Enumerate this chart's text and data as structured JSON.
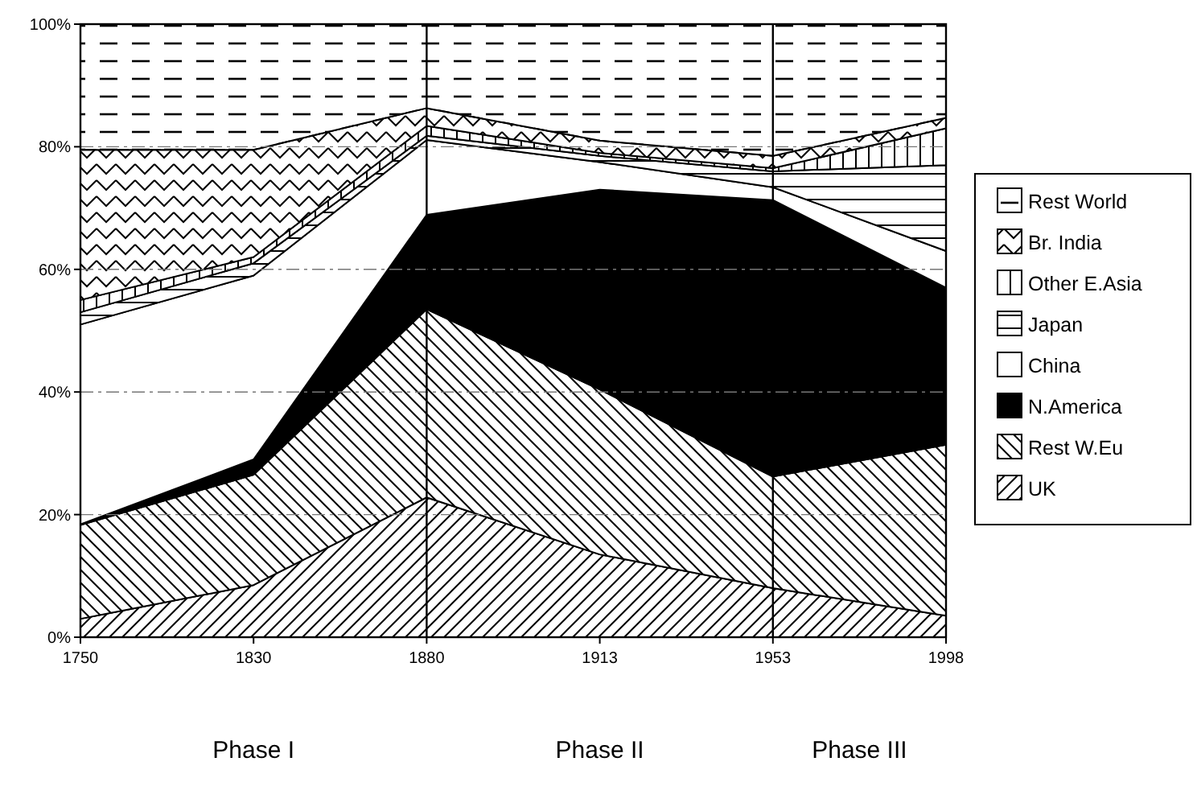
{
  "chart_data": {
    "type": "area",
    "stacked": true,
    "categories": [
      "1750",
      "1830",
      "1880",
      "1913",
      "1953",
      "1998"
    ],
    "series": [
      {
        "name": "UK",
        "color": "#000000",
        "values": [
          3,
          8.5,
          22.8,
          13.5,
          8,
          3.5
        ]
      },
      {
        "name": "Rest W.Eu",
        "color": "#000000",
        "values": [
          15.3,
          18,
          30.7,
          26.9,
          18.2,
          27.9
        ]
      },
      {
        "name": "N.America",
        "color": "#000000",
        "values": [
          0.1,
          2.5,
          15.4,
          32.6,
          45.1,
          25.6
        ]
      },
      {
        "name": "China",
        "color": "#ffffff",
        "values": [
          32.6,
          30,
          12.2,
          4.5,
          2.1,
          6
        ]
      },
      {
        "name": "Japan",
        "color": "#000000",
        "values": [
          2,
          2,
          0.7,
          1,
          2.6,
          14
        ]
      },
      {
        "name": "Other E.Asia",
        "color": "#000000",
        "values": [
          2,
          1,
          1.6,
          0.5,
          0.5,
          6
        ]
      },
      {
        "name": "Br. India",
        "color": "#000000",
        "values": [
          24.5,
          17.5,
          2.9,
          2,
          2,
          1.7
        ]
      },
      {
        "name": "Rest World",
        "color": "#000000",
        "values": [
          20.5,
          20.5,
          13.7,
          19,
          21.5,
          15.3
        ]
      }
    ],
    "ylim": [
      0,
      100
    ],
    "yticks": [
      {
        "value": 0,
        "label": "0%"
      },
      {
        "value": 20,
        "label": "20%"
      },
      {
        "value": 40,
        "label": "40%"
      },
      {
        "value": 60,
        "label": "60%"
      },
      {
        "value": 80,
        "label": "80%"
      },
      {
        "value": 100,
        "label": "100%"
      }
    ],
    "grid": "y",
    "legend": "right",
    "ref_lines": [
      {
        "axis": "x",
        "value": "1880",
        "color": "#000000"
      },
      {
        "axis": "x",
        "value": "1953",
        "color": "#000000"
      }
    ],
    "annotations": [
      "Phase I",
      "Phase II",
      "Phase III"
    ]
  }
}
